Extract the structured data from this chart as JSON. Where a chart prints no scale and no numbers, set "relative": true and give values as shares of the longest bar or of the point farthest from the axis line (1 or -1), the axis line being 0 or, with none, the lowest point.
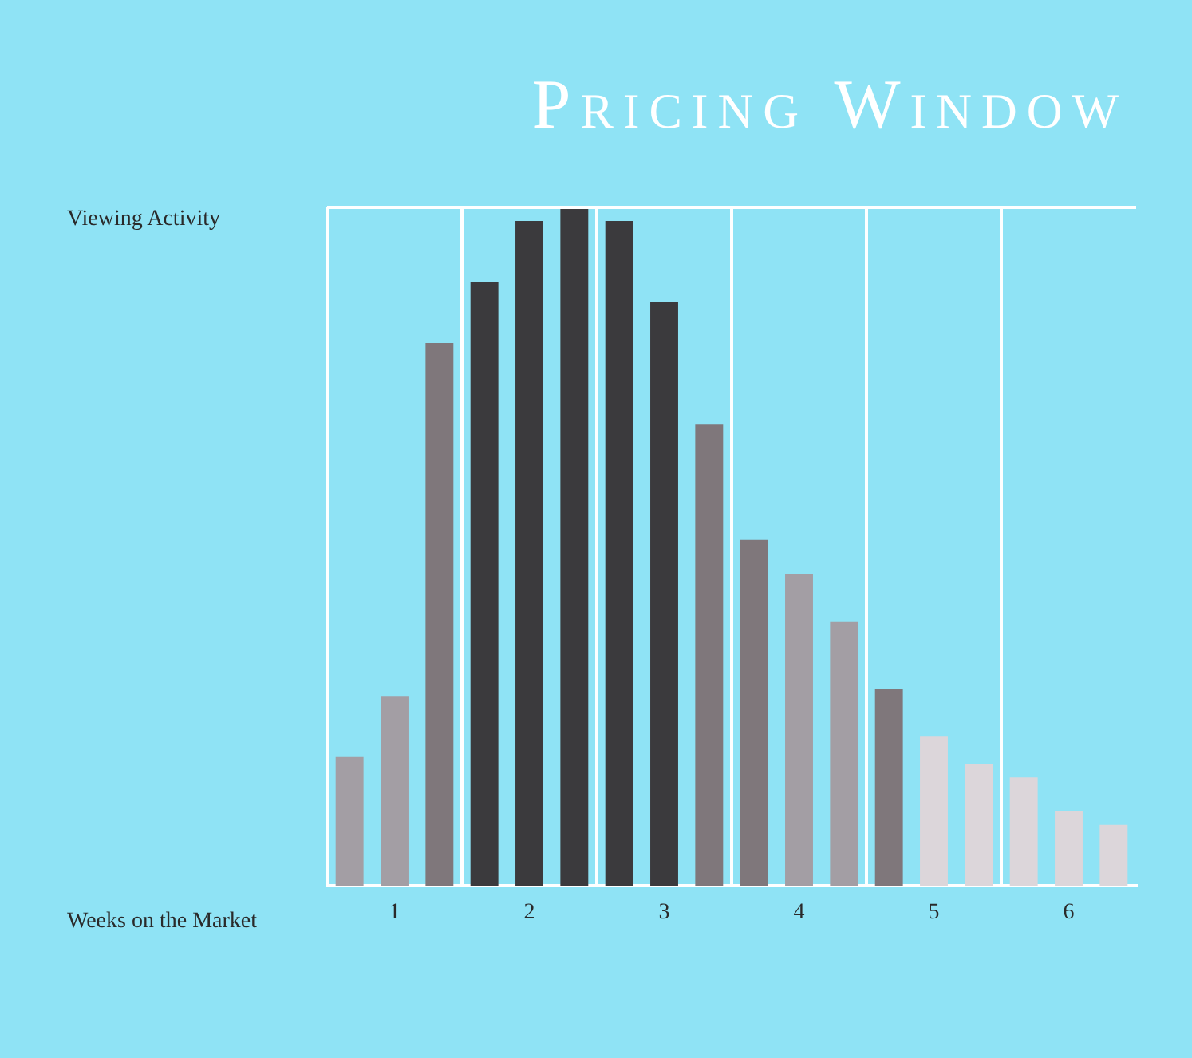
{
  "chart_data": {
    "type": "bar",
    "title": "Pricing Window",
    "xlabel": "Weeks on the Market",
    "ylabel": "Viewing Activity",
    "relative": true,
    "grid": "x",
    "legend": false,
    "categories": [
      null,
      "1",
      null,
      null,
      "2",
      null,
      null,
      "3",
      null,
      null,
      "4",
      null,
      null,
      "5",
      null,
      null,
      "6",
      null
    ],
    "values": [
      0.19,
      0.28,
      0.8,
      0.89,
      0.98,
      1,
      0.98,
      0.86,
      0.68,
      0.51,
      0.46,
      0.39,
      0.29,
      0.22,
      0.18,
      0.16,
      0.11,
      0.09
    ],
    "colors": [
      "#a39ea4",
      "#a39ea4",
      "#7f777b",
      "#3b3a3d",
      "#3b3a3d",
      "#3b3a3d",
      "#3b3a3d",
      "#3b3a3d",
      "#7f777b",
      "#7f777b",
      "#a39ea4",
      "#a39ea4",
      "#7f777b",
      "#dcd6da",
      "#dcd6da",
      "#dcd6da",
      "#dcd6da",
      "#dcd6da"
    ]
  }
}
